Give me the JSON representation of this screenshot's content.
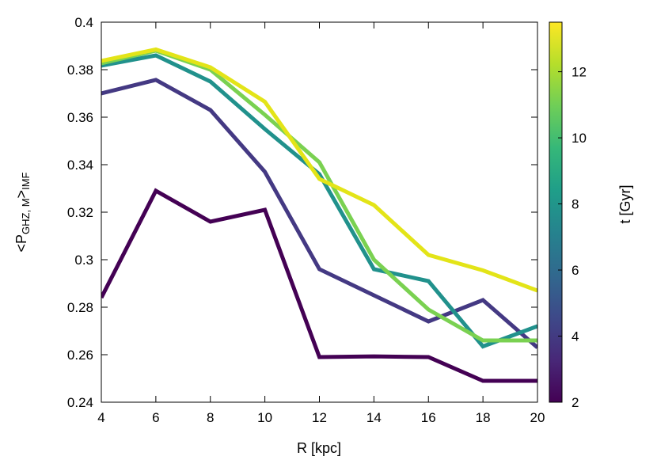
{
  "chart_data": {
    "type": "line",
    "xlabel": "R [kpc]",
    "ylabel_main": "<P",
    "ylabel_sub": "GHZ, M",
    "ylabel_close": ">",
    "ylabel_sub2": "IMF",
    "xlim": [
      4,
      20
    ],
    "ylim": [
      0.24,
      0.4
    ],
    "xticks": [
      4,
      6,
      8,
      10,
      12,
      14,
      16,
      18,
      20
    ],
    "xtick_labels": [
      "4",
      "6",
      "8",
      "10",
      "12",
      "14",
      "16",
      "18",
      "20"
    ],
    "yticks": [
      0.24,
      0.26,
      0.28,
      0.3,
      0.32,
      0.34,
      0.36,
      0.38,
      0.4
    ],
    "ytick_labels": [
      "0.24",
      "0.26",
      "0.28",
      "0.3",
      "0.32",
      "0.34",
      "0.36",
      "0.38",
      "0.4"
    ],
    "x": [
      4,
      6,
      8,
      10,
      12,
      14,
      16,
      18,
      20
    ],
    "series": [
      {
        "color": "#440154",
        "t": 2.0,
        "values": [
          0.284,
          0.329,
          0.316,
          0.321,
          0.259,
          0.2593,
          0.259,
          0.249,
          0.249
        ]
      },
      {
        "color": "#443983",
        "t": 4.0,
        "values": [
          0.37,
          0.3757,
          0.363,
          0.337,
          0.296,
          0.285,
          0.274,
          0.283,
          0.263
        ]
      },
      {
        "color": "#21918c",
        "t": 7.5,
        "values": [
          0.3817,
          0.386,
          0.375,
          0.355,
          0.336,
          0.296,
          0.291,
          0.2635,
          0.272
        ]
      },
      {
        "color": "#7ad151",
        "t": 11.0,
        "values": [
          0.3827,
          0.388,
          0.38,
          0.361,
          0.341,
          0.3,
          0.279,
          0.266,
          0.266
        ]
      },
      {
        "color": "#e3e418",
        "t": 13.2,
        "values": [
          0.3837,
          0.3885,
          0.381,
          0.3665,
          0.334,
          0.323,
          0.302,
          0.2955,
          0.287
        ]
      }
    ],
    "colorbar": {
      "label": "t  [Gyr]",
      "range": [
        2,
        13.5
      ],
      "ticks": [
        2,
        4,
        6,
        8,
        10,
        12
      ],
      "tick_labels": [
        "2",
        "4",
        "6",
        "8",
        "10",
        "12"
      ],
      "colormap": "viridis",
      "stops": [
        "#440154",
        "#482878",
        "#3e4989",
        "#31688e",
        "#26828e",
        "#1f9e89",
        "#35b779",
        "#6ece58",
        "#b5de2b",
        "#fde725"
      ]
    }
  }
}
